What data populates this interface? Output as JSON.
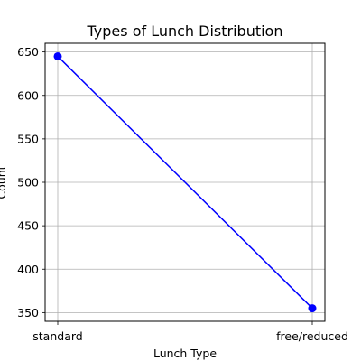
{
  "chart_data": {
    "type": "line",
    "title": "Types of Lunch Distribution",
    "xlabel": "Lunch Type",
    "ylabel": "Count",
    "categories": [
      "standard",
      "free/reduced"
    ],
    "series": [
      {
        "values": [
          645,
          355
        ],
        "color": "#0000ff",
        "marker": "circle"
      }
    ],
    "ylim": [
      340,
      660
    ],
    "yticks": [
      350,
      400,
      450,
      500,
      550,
      600,
      650
    ],
    "grid": true
  }
}
